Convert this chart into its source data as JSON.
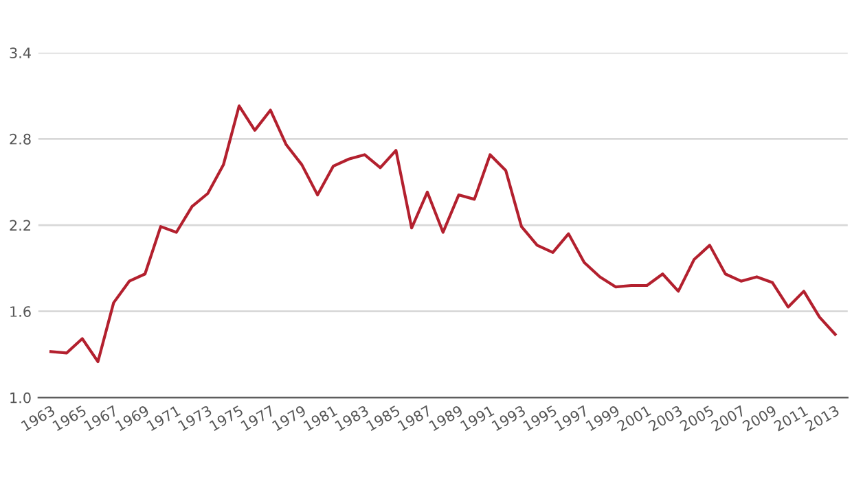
{
  "chart_data": {
    "type": "line",
    "categories": [
      "1963",
      null,
      "1965",
      null,
      "1967",
      null,
      "1969",
      null,
      "1971",
      null,
      "1973",
      null,
      "1975",
      null,
      "1977",
      null,
      "1979",
      null,
      "1981",
      null,
      "1983",
      null,
      "1985",
      null,
      "1987",
      null,
      "1989",
      null,
      "1991",
      null,
      "1993",
      null,
      "1995",
      null,
      "1997",
      null,
      "1999",
      null,
      "2001",
      null,
      "2003",
      null,
      "2005",
      null,
      "2007",
      null,
      "2009",
      null,
      "2011",
      null,
      "2013"
    ],
    "series": [
      {
        "color": "#b3202e",
        "values": [
          1.32,
          1.31,
          1.41,
          1.25,
          1.66,
          1.81,
          1.86,
          2.19,
          2.15,
          2.33,
          2.42,
          2.62,
          3.03,
          2.86,
          3.0,
          2.76,
          2.62,
          2.41,
          2.61,
          2.66,
          2.69,
          2.6,
          2.72,
          2.18,
          2.43,
          2.15,
          2.41,
          2.38,
          2.69,
          2.58,
          2.19,
          2.06,
          2.01,
          2.14,
          1.94,
          1.84,
          1.77,
          1.78,
          1.78,
          1.86,
          1.74,
          1.96,
          2.06,
          1.86,
          1.81,
          1.84,
          1.8,
          1.63,
          1.74,
          1.56,
          1.44
        ]
      }
    ],
    "ylim": [
      1.0,
      3.4
    ],
    "yticks": [
      {
        "value": 1.0,
        "label": "1.0"
      },
      1.6,
      2.2,
      2.8,
      3.4
    ],
    "grid": "y",
    "legend": false,
    "marker": "none",
    "line_style": "solid"
  }
}
